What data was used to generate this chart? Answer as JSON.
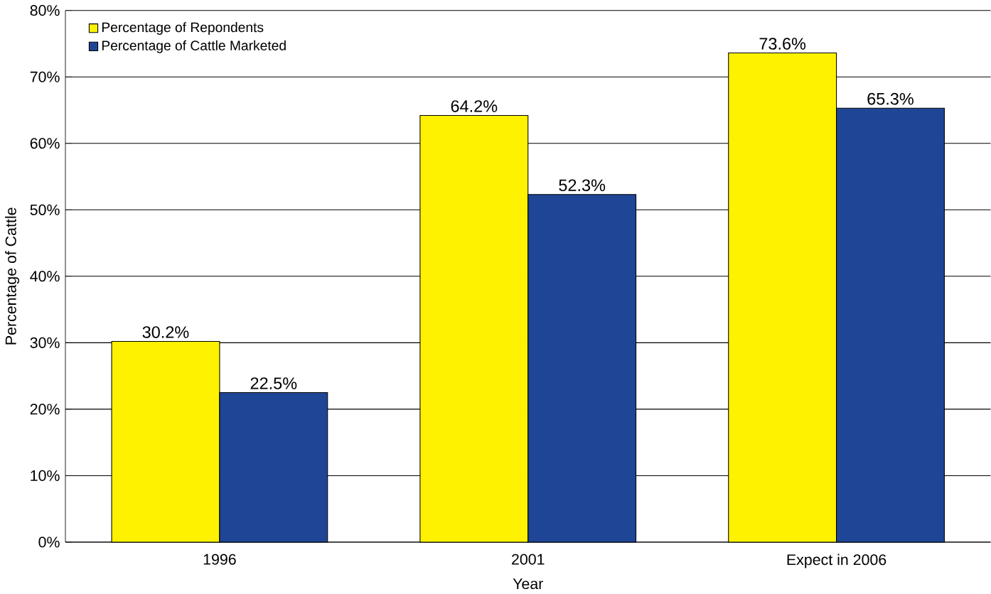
{
  "chart_data": {
    "type": "bar",
    "xlabel": "Year",
    "ylabel": "Percentage of Cattle",
    "categories": [
      "1996",
      "2001",
      "Expect in 2006"
    ],
    "series": [
      {
        "name": "Percentage of Repondents",
        "color": "#fff200",
        "values": [
          30.2,
          64.2,
          73.6
        ],
        "value_labels": [
          "30.2%",
          "64.2%",
          "73.6%"
        ]
      },
      {
        "name": "Percentage of Cattle Marketed",
        "color": "#1f4597",
        "values": [
          22.5,
          52.3,
          65.3
        ],
        "value_labels": [
          "22.5%",
          "52.3%",
          "65.3%"
        ]
      }
    ],
    "ylim": [
      0,
      80
    ],
    "yticks": [
      {
        "value": 0,
        "label": "0%"
      },
      {
        "value": 10,
        "label": "10%"
      },
      {
        "value": 20,
        "label": "20%"
      },
      {
        "value": 30,
        "label": "30%"
      },
      {
        "value": 40,
        "label": "40%"
      },
      {
        "value": 50,
        "label": "50%"
      },
      {
        "value": 60,
        "label": "60%"
      },
      {
        "value": 70,
        "label": "70%"
      },
      {
        "value": 80,
        "label": "80%"
      }
    ],
    "grid": "y",
    "legend": "top left"
  }
}
